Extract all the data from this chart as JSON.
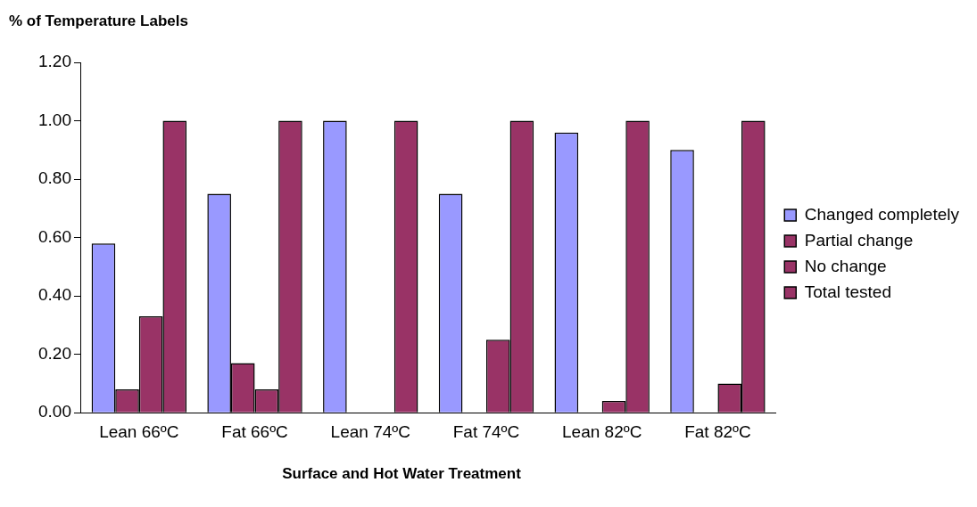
{
  "chart_data": {
    "type": "bar",
    "ylabel": "% of Temperature Labels",
    "xlabel": "Surface and Hot Water Treatment",
    "categories": [
      "Lean 66ºC",
      "Fat 66ºC",
      "Lean 74ºC",
      "Fat 74ºC",
      "Lean 82ºC",
      "Fat 82ºC"
    ],
    "series": [
      {
        "name": "Changed completely",
        "color": "#9999ff",
        "values": [
          0.58,
          0.75,
          1.0,
          0.75,
          0.96,
          0.9
        ]
      },
      {
        "name": "Partial change",
        "color": "#993366",
        "values": [
          0.08,
          0.17,
          0,
          0,
          0,
          0
        ]
      },
      {
        "name": "No change",
        "color": "#993366",
        "values": [
          0.33,
          0.08,
          0,
          0.25,
          0.04,
          0.1
        ]
      },
      {
        "name": "Total tested",
        "color": "#993366",
        "values": [
          1.0,
          1.0,
          1.0,
          1.0,
          1.0,
          1.0
        ]
      }
    ],
    "ylim": [
      0,
      1.2
    ],
    "yticks": [
      {
        "value": 0,
        "label": "0.00"
      },
      {
        "value": 0.2,
        "label": "0.20"
      },
      {
        "value": 0.4,
        "label": "0.40"
      },
      {
        "value": 0.6,
        "label": "0.60"
      },
      {
        "value": 0.8,
        "label": "0.80"
      },
      {
        "value": 1.0,
        "label": "1.00"
      },
      {
        "value": 1.2,
        "label": "1.20"
      }
    ],
    "grid": false,
    "legend": "right"
  }
}
